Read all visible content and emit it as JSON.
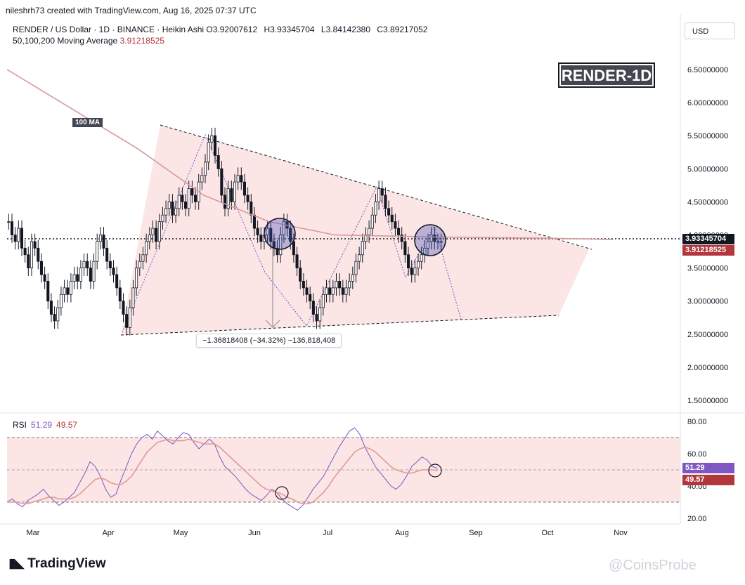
{
  "credit": "nileshrh73 created with TradingView.com, Aug 16, 2025 07:37 UTC",
  "legend": {
    "symbol": "RENDER / US Dollar · 1D · BINANCE · Heikin Ashi",
    "open_label": "O",
    "open": "3.92007612",
    "high_label": "H",
    "high": "3.93345704",
    "low_label": "L",
    "low": "3.84142380",
    "close_label": "C",
    "close": "3.89217052",
    "ma_label": "50,100,200 Moving Average",
    "ma_value": "3.91218525"
  },
  "currency": "USD",
  "tag": "RENDER-1D",
  "ma_tag": "100 MA",
  "measure_label": "−1.36818408 (−34.32%) −136,818,408",
  "rsi_legend": {
    "label": "RSI",
    "value1": "51.29",
    "value2": "49.57"
  },
  "price_badges": {
    "last": "3.93345704",
    "ma": "3.91218525"
  },
  "rsi_badges": {
    "rsi": "51.29",
    "ma": "49.57"
  },
  "logo": "TradingView",
  "watermark": "@CoinsProbe",
  "colors": {
    "up": "#131722",
    "down": "#131722",
    "ma": "#d49a9a",
    "rsi": "#7e57c2",
    "rsi_ma": "#e09a9a",
    "zone": "#fbe0e0",
    "badge_price": "#131722",
    "badge_ma": "#b2363b",
    "badge_rsi": "#7e57c2",
    "badge_rsi_ma": "#b2363b"
  },
  "chart_data": {
    "type": "line",
    "price_axis": [
      "6.50000000",
      "6.00000000",
      "5.50000000",
      "5.00000000",
      "4.50000000",
      "4.00000000",
      "3.50000000",
      "3.00000000",
      "2.50000000",
      "2.00000000",
      "1.50000000"
    ],
    "rsi_axis": [
      "80.00",
      "60.00",
      "40.00",
      "20.00"
    ],
    "x_ticks": [
      "Mar",
      "Apr",
      "May",
      "Jun",
      "Jul",
      "Aug",
      "Sep",
      "Oct",
      "Nov"
    ],
    "candles_x": [
      "2025-02-22",
      "2025-08-16"
    ],
    "closes": [
      4.2,
      4.0,
      3.9,
      4.1,
      3.8,
      3.7,
      3.5,
      3.9,
      3.8,
      3.6,
      3.4,
      3.3,
      3.0,
      2.8,
      2.7,
      2.9,
      3.1,
      3.2,
      3.1,
      3.3,
      3.4,
      3.3,
      3.5,
      3.6,
      3.5,
      3.3,
      3.6,
      3.9,
      4.0,
      3.8,
      3.6,
      3.5,
      3.4,
      3.2,
      3.0,
      2.8,
      2.6,
      2.9,
      3.2,
      3.5,
      3.6,
      3.7,
      3.9,
      4.0,
      4.1,
      3.9,
      4.2,
      4.3,
      4.4,
      4.5,
      4.3,
      4.4,
      4.6,
      4.5,
      4.4,
      4.7,
      4.6,
      4.5,
      4.8,
      4.9,
      5.1,
      5.4,
      5.5,
      5.2,
      5.0,
      4.6,
      4.4,
      4.7,
      4.5,
      4.8,
      4.9,
      4.8,
      4.6,
      4.5,
      4.3,
      4.1,
      4.0,
      3.9,
      4.0,
      4.1,
      3.9,
      3.8,
      3.7,
      4.0,
      4.2,
      4.1,
      3.9,
      3.7,
      3.5,
      3.3,
      3.2,
      3.1,
      3.0,
      2.8,
      2.7,
      2.9,
      3.1,
      3.2,
      3.1,
      3.2,
      3.3,
      3.2,
      3.1,
      3.2,
      3.3,
      3.4,
      3.6,
      3.7,
      3.9,
      4.0,
      4.1,
      4.3,
      4.5,
      4.7,
      4.6,
      4.4,
      4.3,
      4.2,
      4.1,
      4.0,
      3.9,
      3.7,
      3.5,
      3.4,
      3.5,
      3.6,
      3.7,
      3.8,
      3.9,
      4.0,
      3.9,
      3.9,
      3.89
    ],
    "ma_100_points": [
      [
        0,
        6.5
      ],
      [
        20,
        5.9
      ],
      [
        40,
        5.3
      ],
      [
        60,
        4.6
      ],
      [
        80,
        4.2
      ],
      [
        100,
        4.0
      ],
      [
        130,
        3.97
      ],
      [
        165,
        3.95
      ],
      [
        185,
        3.93
      ]
    ],
    "trendline_upper": [
      [
        2025,
        5.65
      ],
      [
        2025,
        3.75
      ]
    ],
    "rsi_values": [
      30,
      32,
      29,
      27,
      31,
      33,
      35,
      38,
      34,
      31,
      28,
      30,
      33,
      36,
      42,
      48,
      55,
      52,
      46,
      38,
      33,
      35,
      44,
      52,
      60,
      66,
      70,
      72,
      69,
      74,
      71,
      68,
      66,
      70,
      73,
      72,
      67,
      63,
      66,
      69,
      66,
      58,
      52,
      49,
      46,
      42,
      38,
      35,
      33,
      31,
      34,
      38,
      36,
      32,
      29,
      27,
      25,
      28,
      33,
      38,
      42,
      46,
      52,
      58,
      64,
      69,
      74,
      76,
      72,
      64,
      58,
      52,
      48,
      44,
      40,
      38,
      41,
      46,
      52,
      55,
      58,
      56,
      52,
      51
    ],
    "rsi_ma_values": [
      30,
      30,
      30,
      29,
      29,
      30,
      31,
      32,
      33,
      33,
      32,
      32,
      32,
      33,
      35,
      38,
      41,
      44,
      45,
      44,
      42,
      41,
      41,
      43,
      46,
      51,
      56,
      61,
      64,
      67,
      68,
      69,
      68,
      68,
      68,
      69,
      68,
      67,
      66,
      66,
      66,
      64,
      61,
      58,
      55,
      52,
      49,
      46,
      43,
      40,
      38,
      37,
      36,
      35,
      33,
      32,
      30,
      29,
      29,
      30,
      33,
      36,
      40,
      45,
      49,
      53,
      57,
      61,
      63,
      64,
      63,
      61,
      58,
      55,
      52,
      50,
      49,
      48,
      48,
      49,
      50,
      50,
      50,
      49.57
    ],
    "rsi_upper_band": 70,
    "rsi_lower_band": 30
  }
}
